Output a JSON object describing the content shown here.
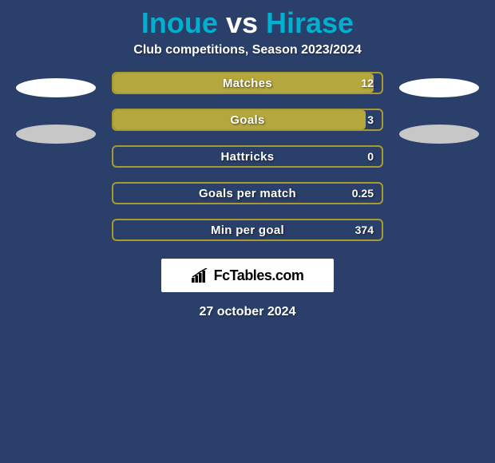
{
  "background_color": "#2a406a",
  "title": {
    "player1": "Inoue",
    "vs": "vs",
    "player2": "Hirase",
    "player1_color": "#00b0d0",
    "vs_color": "#ffffff",
    "player2_color": "#00b0d0"
  },
  "subtitle": "Club competitions, Season 2023/2024",
  "ellipses": {
    "left": [
      {
        "color": "#ffffff"
      },
      {
        "color": "#c7c7c7"
      }
    ],
    "right": [
      {
        "color": "#ffffff"
      },
      {
        "color": "#c7c7c7"
      }
    ]
  },
  "bar_border_color": "#a99a2e",
  "bar_fill_color": "#b3a73e",
  "stats": [
    {
      "label": "Matches",
      "value": "12",
      "fill_pct": 97
    },
    {
      "label": "Goals",
      "value": "3",
      "fill_pct": 94
    },
    {
      "label": "Hattricks",
      "value": "0",
      "fill_pct": 0
    },
    {
      "label": "Goals per match",
      "value": "0.25",
      "fill_pct": 0
    },
    {
      "label": "Min per goal",
      "value": "374",
      "fill_pct": 0
    }
  ],
  "logo": {
    "text": "FcTables.com",
    "icon_color": "#000000",
    "bg": "#ffffff"
  },
  "date": "27 october 2024"
}
